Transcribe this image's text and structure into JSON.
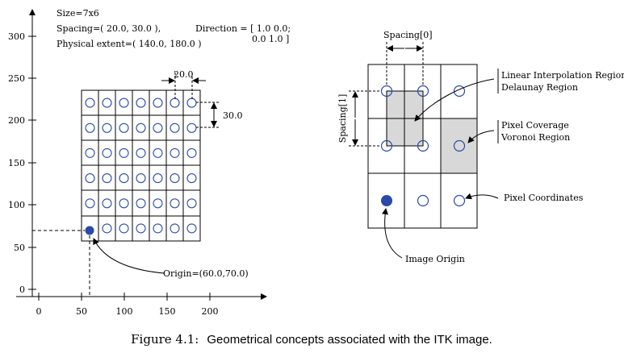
{
  "left": {
    "info": {
      "size": "Size=7x6",
      "spacing": "Spacing=( 20.0, 30.0 ),",
      "extent": "Physical extent=( 140.0, 180.0 )",
      "direction_1": "Direction = [ 1.0 0.0;",
      "direction_2": "0.0 1.0 ]"
    },
    "x_ticks": [
      "0",
      "50",
      "100",
      "150",
      "200"
    ],
    "y_ticks": [
      "0",
      "50",
      "100",
      "150",
      "200",
      "250",
      "300"
    ],
    "spacing_x_label": "20.0",
    "spacing_y_label": "30.0",
    "origin_label": "Origin=(60.0,70.0)",
    "grid": {
      "cols": 7,
      "rows": 6
    }
  },
  "right": {
    "spacing0_label": "Spacing[0]",
    "spacing1_label": "Spacing[1]",
    "annotations": {
      "linear_interp": "Linear Interpolation Region",
      "delaunay": "Delaunay Region",
      "pixel_coverage": "Pixel Coverage",
      "voronoi": "Voronoi Region",
      "pixel_coords": "Pixel Coordinates",
      "image_origin": "Image Origin"
    },
    "grid": {
      "cols": 3,
      "rows": 3
    }
  },
  "caption": {
    "label": "Figure 4.1:",
    "text": "Geometrical concepts associated with the ITK image."
  },
  "colors": {
    "ink": "#000000",
    "circle": "#2b4aa8",
    "origin_fill": "#2b4aa8",
    "region_fill": "#d8d8d8"
  }
}
